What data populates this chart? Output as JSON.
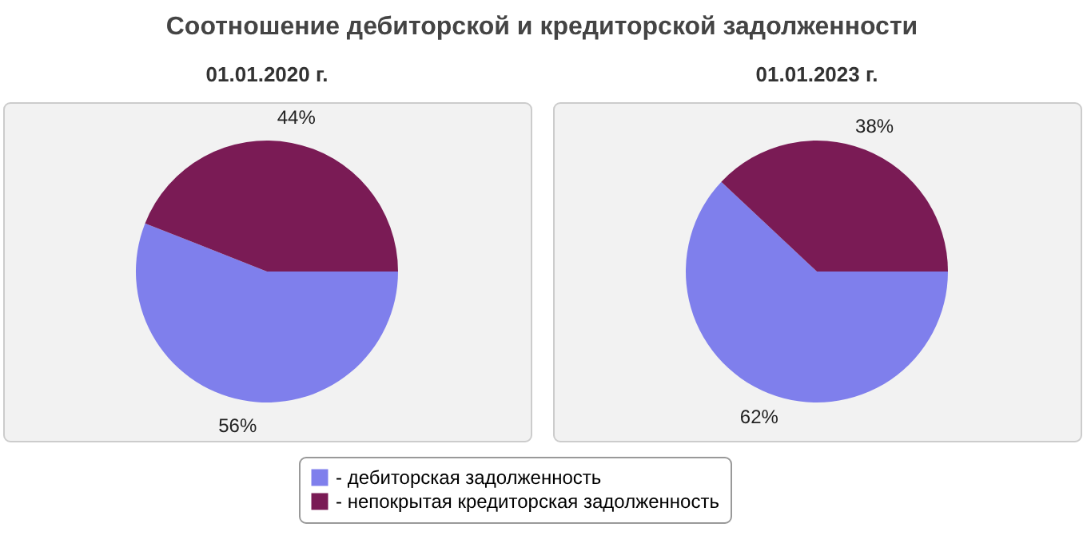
{
  "chart_data": [
    {
      "type": "pie",
      "title": "Соотношение дебиторской и кредиторской задолженности",
      "subtitle": "01.01.2020 г.",
      "categories": [
        "- дебиторская задолженность",
        "- непокрытая кредиторская задолженность"
      ],
      "values": [
        56,
        44
      ],
      "value_labels": [
        "56%",
        "44%"
      ],
      "colors": [
        "#7f7fec",
        "#7a1b55"
      ],
      "legend": "bottom"
    },
    {
      "type": "pie",
      "subtitle": "01.01.2023 г.",
      "values": [
        62,
        38
      ],
      "value_labels": [
        "62%",
        "38%"
      ],
      "colors": [
        "#7f7fec",
        "#7a1b55"
      ]
    }
  ]
}
